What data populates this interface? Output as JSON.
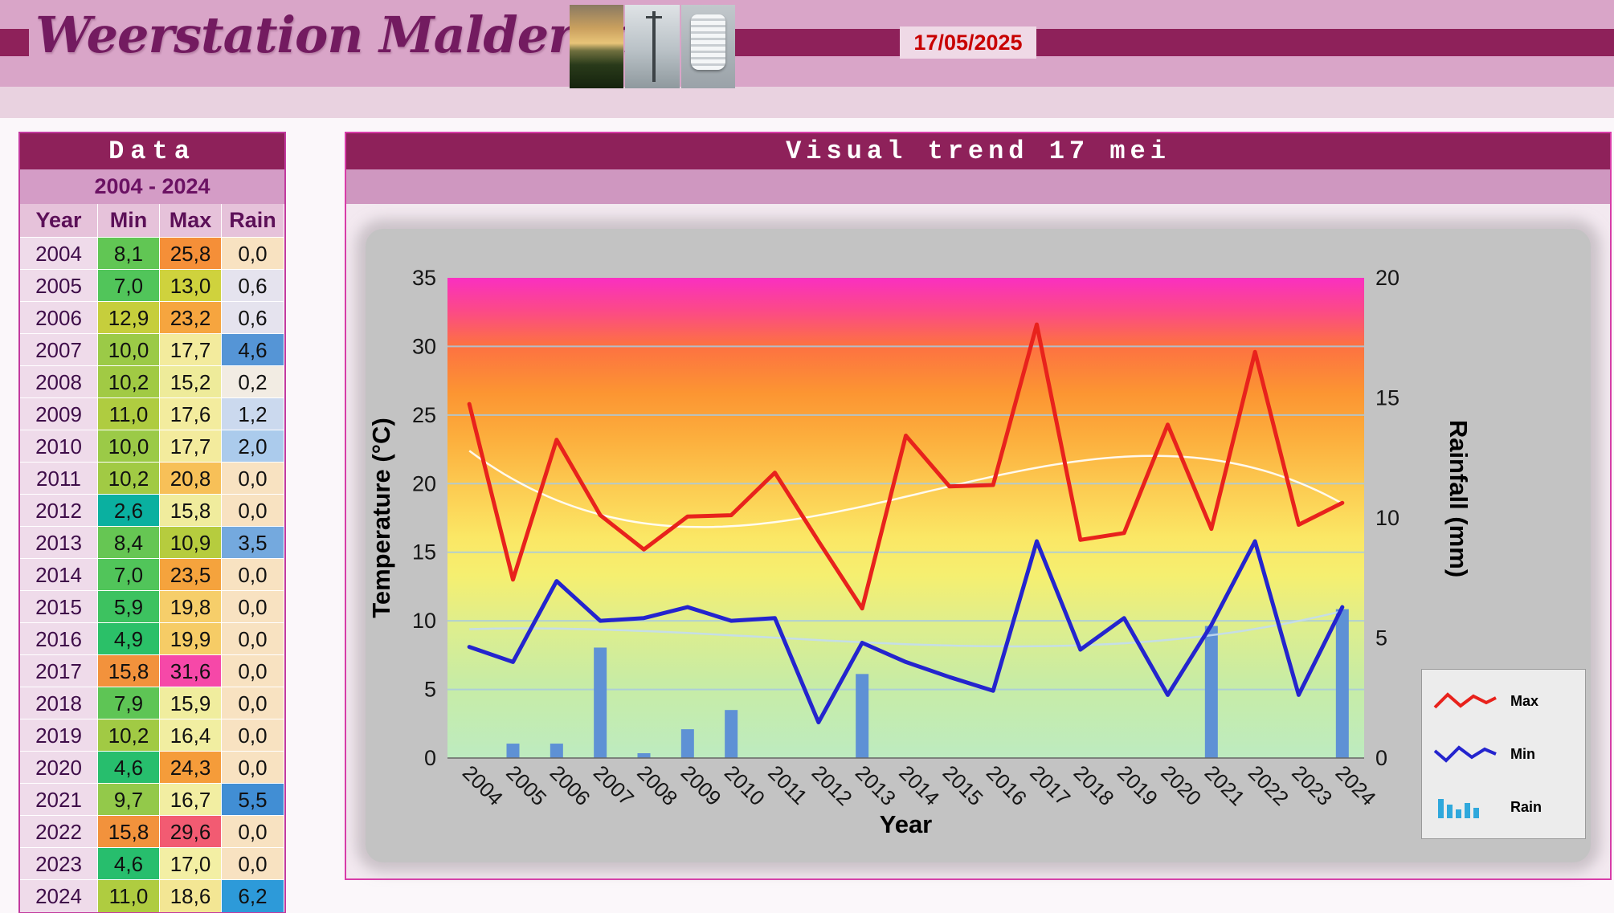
{
  "header": {
    "title": "Weerstation Malderen",
    "date": "17/05/2025"
  },
  "table": {
    "title": "Data",
    "subtitle": "2004 - 2024",
    "columns": [
      "Year",
      "Min",
      "Max",
      "Rain"
    ],
    "rows": [
      [
        "2004",
        "8,1",
        "25,8",
        "0,0"
      ],
      [
        "2005",
        "7,0",
        "13,0",
        "0,6"
      ],
      [
        "2006",
        "12,9",
        "23,2",
        "0,6"
      ],
      [
        "2007",
        "10,0",
        "17,7",
        "4,6"
      ],
      [
        "2008",
        "10,2",
        "15,2",
        "0,2"
      ],
      [
        "2009",
        "11,0",
        "17,6",
        "1,2"
      ],
      [
        "2010",
        "10,0",
        "17,7",
        "2,0"
      ],
      [
        "2011",
        "10,2",
        "20,8",
        "0,0"
      ],
      [
        "2012",
        "2,6",
        "15,8",
        "0,0"
      ],
      [
        "2013",
        "8,4",
        "10,9",
        "3,5"
      ],
      [
        "2014",
        "7,0",
        "23,5",
        "0,0"
      ],
      [
        "2015",
        "5,9",
        "19,8",
        "0,0"
      ],
      [
        "2016",
        "4,9",
        "19,9",
        "0,0"
      ],
      [
        "2017",
        "15,8",
        "31,6",
        "0,0"
      ],
      [
        "2018",
        "7,9",
        "15,9",
        "0,0"
      ],
      [
        "2019",
        "10,2",
        "16,4",
        "0,0"
      ],
      [
        "2020",
        "4,6",
        "24,3",
        "0,0"
      ],
      [
        "2021",
        "9,7",
        "16,7",
        "5,5"
      ],
      [
        "2022",
        "15,8",
        "29,6",
        "0,0"
      ],
      [
        "2023",
        "4,6",
        "17,0",
        "0,0"
      ],
      [
        "2024",
        "11,0",
        "18,6",
        "6,2"
      ]
    ]
  },
  "chart_data": {
    "type": "combo line+bar",
    "title": "Visual trend 17 mei",
    "categories": [
      "2004",
      "2005",
      "2006",
      "2007",
      "2008",
      "2009",
      "2010",
      "2011",
      "2012",
      "2013",
      "2014",
      "2015",
      "2016",
      "2017",
      "2018",
      "2019",
      "2020",
      "2021",
      "2022",
      "2023",
      "2024"
    ],
    "series": [
      {
        "name": "Max",
        "type": "line",
        "axis": "left",
        "color": "#E8221C",
        "values": [
          25.8,
          13.0,
          23.2,
          17.7,
          15.2,
          17.6,
          17.7,
          20.8,
          15.8,
          10.9,
          23.5,
          19.8,
          19.9,
          31.6,
          15.9,
          16.4,
          24.3,
          16.7,
          29.6,
          17.0,
          18.6
        ]
      },
      {
        "name": "Min",
        "type": "line",
        "axis": "left",
        "color": "#2424CE",
        "values": [
          8.1,
          7.0,
          12.9,
          10.0,
          10.2,
          11.0,
          10.0,
          10.2,
          2.6,
          8.4,
          7.0,
          5.9,
          4.9,
          15.8,
          7.9,
          10.2,
          4.6,
          9.7,
          15.8,
          4.6,
          11.0
        ]
      },
      {
        "name": "Rain",
        "type": "bar",
        "axis": "right",
        "color": "#5E91D5",
        "values": [
          0.0,
          0.6,
          0.6,
          4.6,
          0.2,
          1.2,
          2.0,
          0.0,
          0.0,
          3.5,
          0.0,
          0.0,
          0.0,
          0.0,
          0.0,
          0.0,
          0.0,
          5.5,
          0.0,
          0.0,
          6.2
        ]
      }
    ],
    "trendlines": [
      {
        "series": "Max",
        "color": "#FFFFFF",
        "degree": 3
      },
      {
        "series": "Min",
        "color": "#C3DCEF",
        "degree": 3
      }
    ],
    "xlabel": "Year",
    "ylabel_left": "Temperature (°C)",
    "ylabel_right": "Rainfall (mm)",
    "ylim_left": [
      0,
      35
    ],
    "ylim_right": [
      0,
      20
    ],
    "yticks_left": [
      0,
      5,
      10,
      15,
      20,
      25,
      30,
      35
    ],
    "yticks_right": [
      0,
      5,
      10,
      15,
      20
    ],
    "grid": true,
    "legend_position": "bottom-right",
    "plot_background": "temperature-rainbow-gradient"
  },
  "colors": {
    "maroon": "#8E215A",
    "panel_border": "#D83CA8",
    "header_pink": "#D9A5C8",
    "date_text": "#C80000",
    "gridline": "#A9CBE0"
  }
}
